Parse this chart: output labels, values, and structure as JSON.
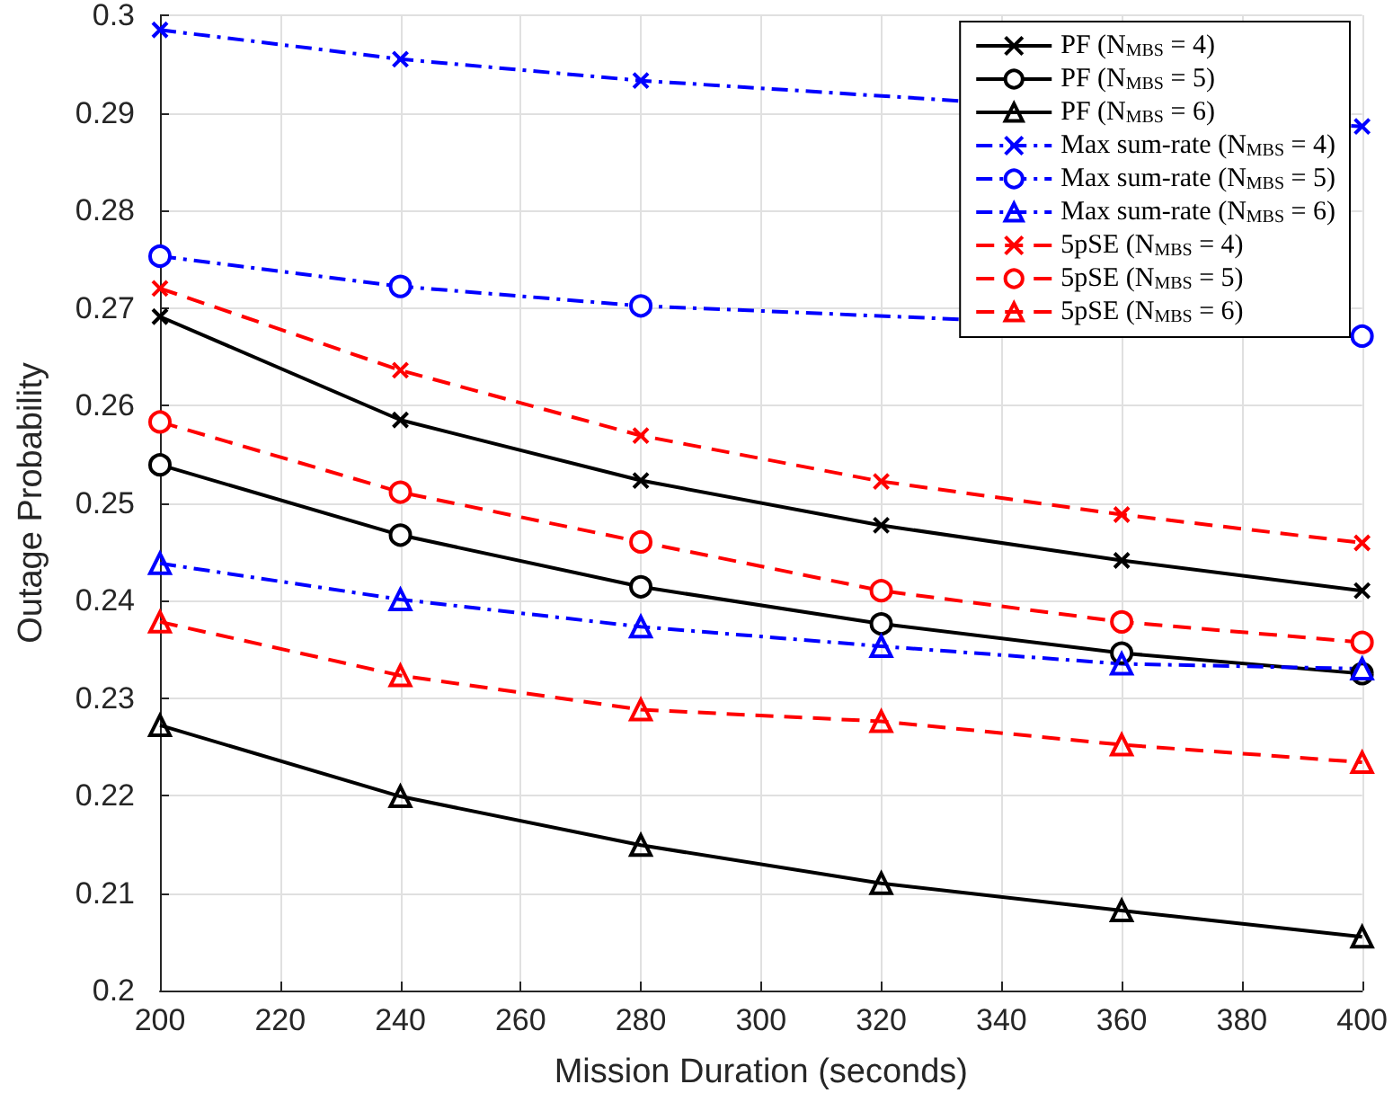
{
  "chart_data": {
    "type": "line",
    "xlabel": "Mission Duration (seconds)",
    "ylabel": "Outage Probability",
    "x": [
      200,
      240,
      280,
      320,
      360,
      400
    ],
    "series": [
      {
        "name": "PF (N$_{MBS}$ = 4)",
        "color": "#000000",
        "marker": "cross",
        "line_style": "solid",
        "values": [
          0.2691,
          0.2585,
          0.2523,
          0.2477,
          0.2441,
          0.241
        ]
      },
      {
        "name": "PF (N$_{MBS}$ = 5)",
        "color": "#000000",
        "marker": "circle",
        "line_style": "solid",
        "values": [
          0.2539,
          0.2467,
          0.2414,
          0.2376,
          0.2346,
          0.2325
        ]
      },
      {
        "name": "PF (N$_{MBS}$ = 6)",
        "color": "#000000",
        "marker": "triangle",
        "line_style": "solid",
        "values": [
          0.2272,
          0.2199,
          0.2149,
          0.211,
          0.2082,
          0.2055
        ]
      },
      {
        "name": "Max sum-rate (N$_{MBS}$ = 4)",
        "color": "#0000ff",
        "marker": "cross",
        "line_style": "dashdot",
        "values": [
          0.2985,
          0.2955,
          0.2933,
          null,
          null,
          0.2886
        ]
      },
      {
        "name": "Max sum-rate (N$_{MBS}$ = 5)",
        "color": "#0000ff",
        "marker": "circle",
        "line_style": "dashdot",
        "values": [
          0.2753,
          0.2722,
          0.2702,
          null,
          null,
          0.2671
        ]
      },
      {
        "name": "Max sum-rate (N$_{MBS}$ = 6)",
        "color": "#0000ff",
        "marker": "triangle",
        "line_style": "dashdot",
        "values": [
          0.2438,
          0.2401,
          0.2373,
          0.2353,
          0.2335,
          0.233
        ]
      },
      {
        "name": "5pSE (N$_{MBS}$ = 4)",
        "color": "#ff0000",
        "marker": "cross",
        "line_style": "dashed",
        "values": [
          0.272,
          0.2636,
          0.2569,
          0.2522,
          0.2488,
          0.2459
        ]
      },
      {
        "name": "5pSE (N$_{MBS}$ = 5)",
        "color": "#ff0000",
        "marker": "circle",
        "line_style": "dashed",
        "values": [
          0.2583,
          0.2511,
          0.246,
          0.241,
          0.2378,
          0.2357
        ]
      },
      {
        "name": "5pSE (N$_{MBS}$ = 6)",
        "color": "#ff0000",
        "marker": "triangle",
        "line_style": "dashed",
        "values": [
          0.2378,
          0.2323,
          0.2288,
          0.2276,
          0.2252,
          0.2234
        ]
      }
    ],
    "xlim": [
      200,
      400
    ],
    "xticks": [
      200,
      220,
      240,
      260,
      280,
      300,
      320,
      340,
      360,
      380,
      400
    ],
    "ylim": [
      0.2,
      0.3
    ],
    "yticks": [
      0.2,
      0.21,
      0.22,
      0.23,
      0.24,
      0.25,
      0.26,
      0.27,
      0.28,
      0.29,
      0.3
    ],
    "grid": true,
    "legend": "top right"
  }
}
